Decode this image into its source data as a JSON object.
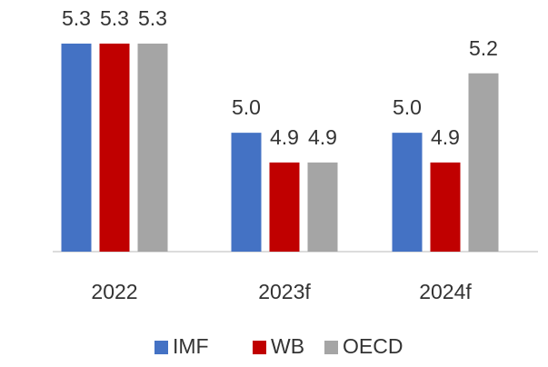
{
  "chart_data": {
    "type": "bar",
    "categories": [
      "2022",
      "2023f",
      "2024f"
    ],
    "series": [
      {
        "name": "IMF",
        "color": "#4472c4",
        "values": [
          5.3,
          5.0,
          5.0
        ],
        "value_labels": [
          "5.3",
          "5.0",
          "5.0"
        ]
      },
      {
        "name": "WB",
        "color": "#c00000",
        "values": [
          5.3,
          4.9,
          4.9
        ],
        "value_labels": [
          "5.3",
          "4.9",
          "4.9"
        ]
      },
      {
        "name": "OECD",
        "color": "#a5a5a5",
        "values": [
          5.3,
          4.9,
          5.2
        ],
        "value_labels": [
          "5.3",
          "4.9",
          "5.2"
        ]
      }
    ],
    "ylim": [
      4.6,
      5.3
    ],
    "legend": "bottom"
  }
}
